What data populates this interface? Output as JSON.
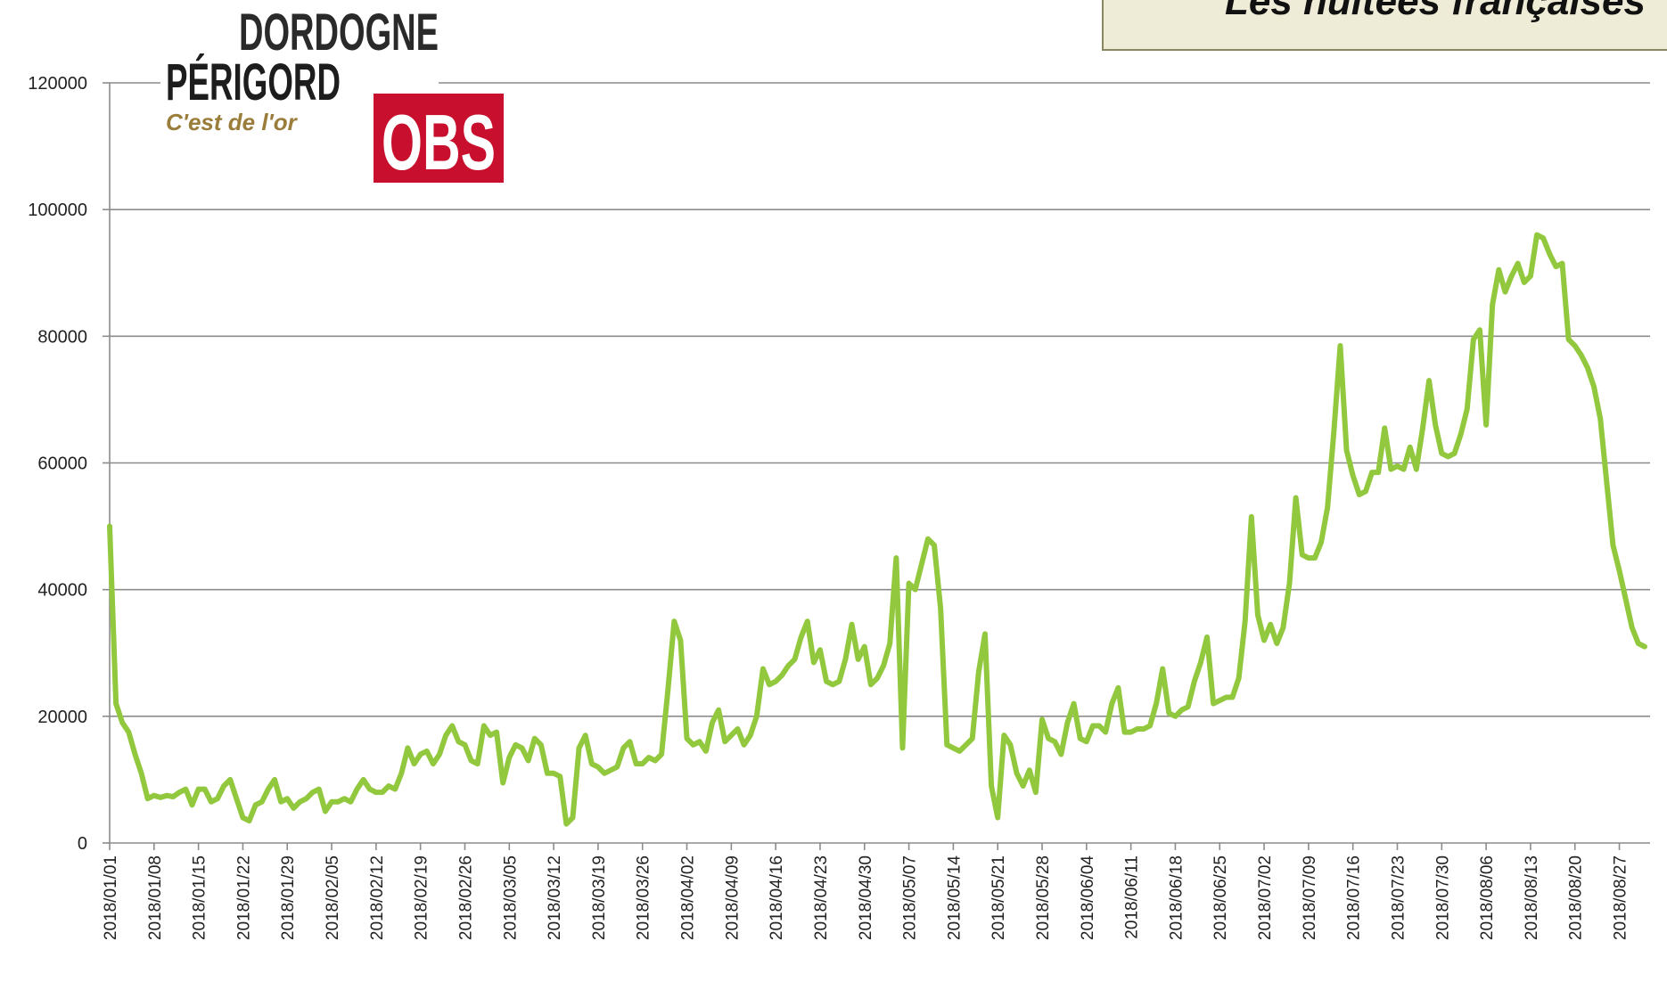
{
  "logo": {
    "line1": "DORDOGNE",
    "line2": "PÉRIGORD",
    "slogan": "C'est de l'or",
    "badge": "OBS"
  },
  "chart_data": {
    "type": "line",
    "title": "Les nuitées françaises",
    "color": "#92c83e",
    "grid": true,
    "ylim": [
      0,
      120000
    ],
    "yticks": [
      0,
      20000,
      40000,
      60000,
      80000,
      100000,
      120000
    ],
    "categories": [
      "2018/01/01",
      null,
      null,
      null,
      null,
      null,
      null,
      "2018/01/08",
      null,
      null,
      null,
      null,
      null,
      null,
      "2018/01/15",
      null,
      null,
      null,
      null,
      null,
      null,
      "2018/01/22",
      null,
      null,
      null,
      null,
      null,
      null,
      "2018/01/29",
      null,
      null,
      null,
      null,
      null,
      null,
      "2018/02/05",
      null,
      null,
      null,
      null,
      null,
      null,
      "2018/02/12",
      null,
      null,
      null,
      null,
      null,
      null,
      "2018/02/19",
      null,
      null,
      null,
      null,
      null,
      null,
      "2018/02/26",
      null,
      null,
      null,
      null,
      null,
      null,
      "2018/03/05",
      null,
      null,
      null,
      null,
      null,
      null,
      "2018/03/12",
      null,
      null,
      null,
      null,
      null,
      null,
      "2018/03/19",
      null,
      null,
      null,
      null,
      null,
      null,
      "2018/03/26",
      null,
      null,
      null,
      null,
      null,
      null,
      "2018/04/02",
      null,
      null,
      null,
      null,
      null,
      null,
      "2018/04/09",
      null,
      null,
      null,
      null,
      null,
      null,
      "2018/04/16",
      null,
      null,
      null,
      null,
      null,
      null,
      "2018/04/23",
      null,
      null,
      null,
      null,
      null,
      null,
      "2018/04/30",
      null,
      null,
      null,
      null,
      null,
      null,
      "2018/05/07",
      null,
      null,
      null,
      null,
      null,
      null,
      "2018/05/14",
      null,
      null,
      null,
      null,
      null,
      null,
      "2018/05/21",
      null,
      null,
      null,
      null,
      null,
      null,
      "2018/05/28",
      null,
      null,
      null,
      null,
      null,
      null,
      "2018/06/04",
      null,
      null,
      null,
      null,
      null,
      null,
      "2018/06/11",
      null,
      null,
      null,
      null,
      null,
      null,
      "2018/06/18",
      null,
      null,
      null,
      null,
      null,
      null,
      "2018/06/25",
      null,
      null,
      null,
      null,
      null,
      null,
      "2018/07/02",
      null,
      null,
      null,
      null,
      null,
      null,
      "2018/07/09",
      null,
      null,
      null,
      null,
      null,
      null,
      "2018/07/16",
      null,
      null,
      null,
      null,
      null,
      null,
      "2018/07/23",
      null,
      null,
      null,
      null,
      null,
      null,
      "2018/07/30",
      null,
      null,
      null,
      null,
      null,
      null,
      "2018/08/06",
      null,
      null,
      null,
      null,
      null,
      null,
      "2018/08/13",
      null,
      null,
      null,
      null,
      null,
      null,
      "2018/08/20",
      null,
      null,
      null,
      null,
      null,
      null,
      "2018/08/27",
      null,
      null,
      null,
      null
    ],
    "values": [
      50000,
      22000,
      19000,
      17500,
      14000,
      11000,
      7000,
      7500,
      7200,
      7500,
      7300,
      8000,
      8500,
      6000,
      8500,
      8500,
      6500,
      7000,
      9000,
      10000,
      7000,
      4000,
      3500,
      6000,
      6500,
      8500,
      10000,
      6500,
      7000,
      5500,
      6500,
      7000,
      8000,
      8500,
      5000,
      6500,
      6500,
      7000,
      6500,
      8500,
      10000,
      8500,
      8000,
      8000,
      9000,
      8500,
      11000,
      15000,
      12500,
      14000,
      14500,
      12500,
      14000,
      17000,
      18500,
      16000,
      15500,
      13000,
      12500,
      18500,
      17000,
      17500,
      9500,
      13500,
      15500,
      15000,
      13000,
      16500,
      15500,
      11000,
      11000,
      10500,
      3000,
      4000,
      15000,
      17000,
      12500,
      12000,
      11000,
      11500,
      12000,
      15000,
      16000,
      12500,
      12500,
      13500,
      13000,
      14000,
      24000,
      35000,
      32000,
      16500,
      15500,
      16000,
      14500,
      19000,
      21000,
      16000,
      17000,
      18000,
      15500,
      17000,
      20000,
      27500,
      25000,
      25500,
      26500,
      28000,
      29000,
      32500,
      35000,
      28500,
      30500,
      25500,
      25000,
      25500,
      29000,
      34500,
      29000,
      31000,
      25000,
      26000,
      28000,
      31500,
      45000,
      15000,
      41000,
      40000,
      44000,
      48000,
      47000,
      37000,
      15500,
      15000,
      14500,
      15500,
      16500,
      27000,
      33000,
      9000,
      4000,
      17000,
      15500,
      11000,
      9000,
      11500,
      8000,
      19500,
      16500,
      16000,
      14000,
      19000,
      22000,
      16500,
      16000,
      18500,
      18500,
      17500,
      22000,
      24500,
      17500,
      17500,
      18000,
      18000,
      18500,
      22000,
      27500,
      20500,
      20000,
      21000,
      21500,
      25500,
      28500,
      32500,
      22000,
      22500,
      23000,
      23000,
      26000,
      35000,
      51500,
      36000,
      32000,
      34500,
      31500,
      34000,
      41000,
      54500,
      45500,
      45000,
      45000,
      47500,
      53000,
      65000,
      78500,
      62000,
      58000,
      55000,
      55500,
      58500,
      58500,
      65500,
      59000,
      59500,
      59000,
      62500,
      59000,
      65500,
      73000,
      66000,
      61500,
      61000,
      61500,
      64500,
      68500,
      79500,
      81000,
      66000,
      85000,
      90500,
      87000,
      89500,
      91500,
      88500,
      89500,
      96000,
      95500,
      93000,
      91000,
      91500,
      79500,
      78500,
      77000,
      75000,
      72000,
      67000,
      57000,
      47000,
      43000,
      38500,
      34000,
      31500,
      31000
    ]
  }
}
